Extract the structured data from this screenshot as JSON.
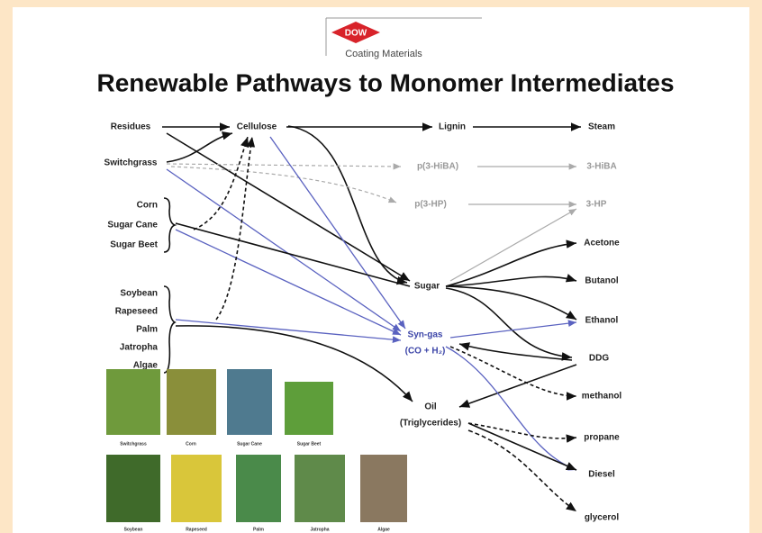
{
  "header": {
    "logo": "DOW",
    "subtitle": "Coating Materials",
    "title": "Renewable Pathways to Monomer Intermediates"
  },
  "nodes": [
    {
      "label": "Residues"
    },
    {
      "label": "Cellulose"
    },
    {
      "label": "Lignin"
    },
    {
      "label": "Steam"
    },
    {
      "label": "Switchgrass"
    },
    {
      "label": "p(3-HiBA)"
    },
    {
      "label": "3-HiBA"
    },
    {
      "label": "p(3-HP)"
    },
    {
      "label": "3-HP"
    },
    {
      "label": "Corn"
    },
    {
      "label": "Sugar Cane"
    },
    {
      "label": "Sugar Beet"
    },
    {
      "label": "Sugar"
    },
    {
      "label": "Acetone"
    },
    {
      "label": "Butanol"
    },
    {
      "label": "Ethanol"
    },
    {
      "label": "DDG"
    },
    {
      "label": "Soybean"
    },
    {
      "label": "Rapeseed"
    },
    {
      "label": "Palm"
    },
    {
      "label": "Jatropha"
    },
    {
      "label": "Algae"
    },
    {
      "label": "Syn-gas"
    },
    {
      "label": "(CO + H₂)"
    },
    {
      "label": "Oil"
    },
    {
      "label": "(Triglycerides)"
    },
    {
      "label": "methanol"
    },
    {
      "label": "propane"
    },
    {
      "label": "Diesel"
    },
    {
      "label": "glycerol"
    }
  ],
  "photos": [
    {
      "caption": "Switchgrass"
    },
    {
      "caption": "Corn"
    },
    {
      "caption": "Sugar Cane"
    },
    {
      "caption": "Sugar Beet"
    },
    {
      "caption": "Soybean"
    },
    {
      "caption": "Rapeseed"
    },
    {
      "caption": "Palm"
    },
    {
      "caption": "Jatropha"
    },
    {
      "caption": "Algae"
    }
  ]
}
